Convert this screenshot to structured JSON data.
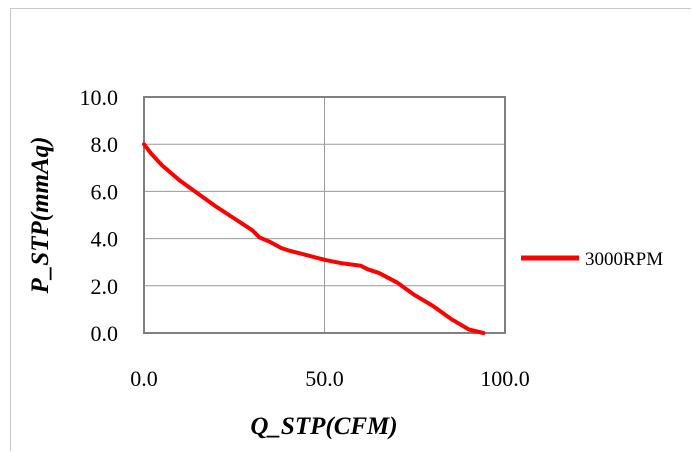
{
  "chart_data": {
    "type": "line",
    "title": "",
    "xlabel": "Q_STP(CFM)",
    "ylabel": "P_STP(mmAq)",
    "xlim": [
      0,
      100
    ],
    "ylim": [
      0,
      10
    ],
    "x_ticks": [
      "0.0",
      "50.0",
      "100.0"
    ],
    "y_ticks": [
      "0.0",
      "2.0",
      "4.0",
      "6.0",
      "8.0",
      "10.0"
    ],
    "grid": true,
    "legend_position": "right",
    "series": [
      {
        "name": "3000RPM",
        "color": "#ff0000",
        "x": [
          0,
          2,
          5,
          10,
          15,
          20,
          25,
          28,
          30,
          32,
          35,
          38,
          40,
          45,
          50,
          55,
          60,
          62,
          65,
          70,
          75,
          80,
          85,
          90,
          94
        ],
        "y": [
          8.0,
          7.6,
          7.1,
          6.45,
          5.9,
          5.35,
          4.85,
          4.55,
          4.35,
          4.05,
          3.85,
          3.6,
          3.5,
          3.3,
          3.1,
          2.95,
          2.85,
          2.7,
          2.55,
          2.15,
          1.6,
          1.15,
          0.6,
          0.15,
          0.0
        ]
      }
    ]
  }
}
